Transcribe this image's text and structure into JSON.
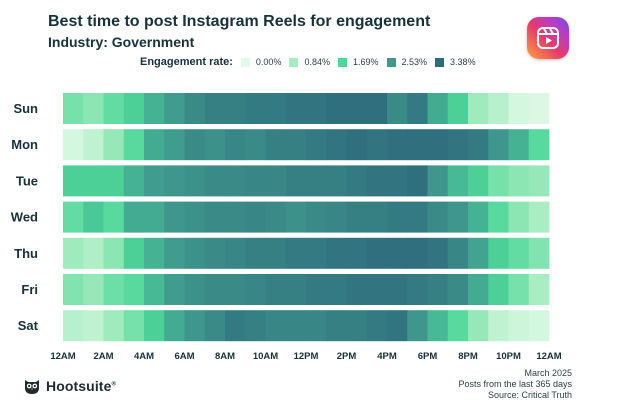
{
  "title": "Best time to post Instagram Reels for engagement",
  "subtitle": "Industry: Government",
  "legend": {
    "title": "Engagement rate:",
    "items": [
      {
        "label": "0.00%",
        "color": "#e3fae9"
      },
      {
        "label": "0.84%",
        "color": "#a6ecc0"
      },
      {
        "label": "1.69%",
        "color": "#4fd79a"
      },
      {
        "label": "2.53%",
        "color": "#3f9a8e"
      },
      {
        "label": "3.38%",
        "color": "#2e6b7c"
      }
    ]
  },
  "chart_data": {
    "type": "heatmap",
    "title": "Best time to post Instagram Reels for engagement",
    "subtitle": "Industry: Government",
    "rows": [
      "Sun",
      "Mon",
      "Tue",
      "Wed",
      "Thu",
      "Fri",
      "Sat"
    ],
    "x_tick_labels": [
      "12AM",
      "2AM",
      "4AM",
      "6AM",
      "8AM",
      "10AM",
      "12PM",
      "2PM",
      "4PM",
      "6PM",
      "8PM",
      "10PM",
      "12AM"
    ],
    "hours": 24,
    "scale": {
      "min": 0.0,
      "max": 3.38,
      "stops": [
        0.0,
        0.84,
        1.69,
        2.53,
        3.38
      ]
    },
    "values": [
      [
        1.3,
        1.1,
        1.5,
        1.8,
        2.2,
        2.5,
        2.8,
        3.0,
        3.0,
        3.1,
        3.1,
        3.2,
        3.2,
        3.3,
        3.3,
        3.3,
        2.8,
        3.1,
        2.3,
        1.8,
        0.9,
        0.6,
        0.2,
        0.1
      ],
      [
        0.2,
        0.5,
        1.0,
        1.6,
        2.3,
        2.5,
        2.8,
        2.7,
        2.9,
        2.8,
        3.0,
        3.0,
        3.1,
        3.2,
        3.3,
        3.2,
        3.3,
        3.3,
        3.3,
        3.2,
        3.1,
        2.6,
        2.2,
        1.6
      ],
      [
        1.8,
        1.8,
        1.8,
        2.2,
        2.5,
        2.6,
        2.7,
        2.8,
        2.8,
        2.9,
        2.9,
        3.0,
        3.0,
        3.0,
        3.1,
        3.2,
        3.2,
        3.3,
        2.6,
        2.1,
        1.8,
        1.3,
        1.1,
        1.0
      ],
      [
        1.5,
        1.9,
        1.6,
        2.3,
        2.3,
        2.6,
        2.7,
        2.8,
        2.8,
        2.9,
        2.8,
        2.7,
        2.8,
        2.9,
        3.0,
        3.0,
        3.1,
        3.1,
        2.8,
        2.6,
        2.2,
        1.6,
        1.1,
        0.8
      ],
      [
        0.9,
        0.7,
        1.1,
        1.8,
        2.2,
        2.5,
        2.7,
        2.8,
        2.9,
        3.0,
        3.0,
        3.1,
        3.1,
        3.2,
        3.2,
        3.3,
        3.3,
        3.3,
        3.2,
        2.9,
        2.4,
        1.8,
        1.5,
        1.2
      ],
      [
        1.2,
        1.0,
        1.4,
        1.6,
        2.1,
        2.5,
        2.7,
        2.8,
        2.8,
        2.9,
        3.0,
        3.0,
        3.1,
        3.1,
        3.2,
        3.2,
        3.2,
        3.1,
        3.0,
        2.8,
        2.3,
        1.8,
        1.3,
        0.8
      ],
      [
        0.6,
        0.5,
        0.9,
        1.3,
        1.8,
        2.3,
        2.6,
        2.8,
        3.1,
        3.0,
        2.9,
        2.9,
        2.9,
        3.0,
        3.0,
        3.1,
        3.2,
        2.6,
        2.1,
        1.6,
        1.0,
        0.5,
        0.3,
        0.2
      ]
    ]
  },
  "footer": {
    "brand": "Hootsuite",
    "registered": "®",
    "date": "March 2025",
    "period": "Posts from the last 365 days",
    "source": "Source: Critical Truth"
  }
}
